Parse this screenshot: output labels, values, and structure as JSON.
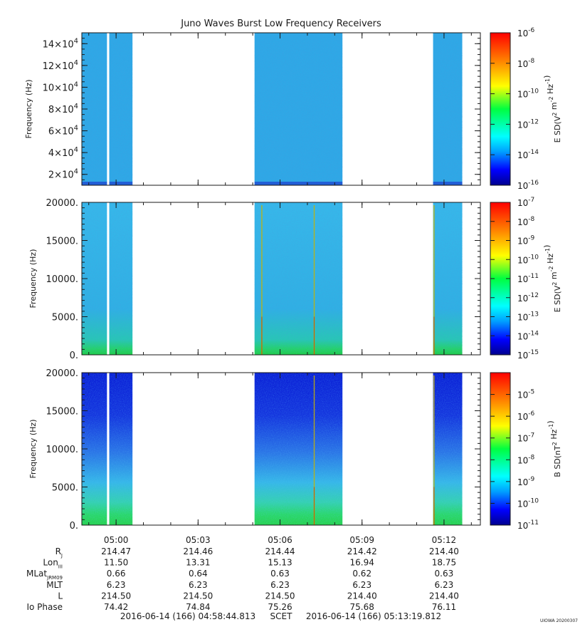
{
  "title": "Juno Waves Burst Low Frequency Receivers",
  "footer": {
    "start": "2016-06-14 (166) 04:58:44.813",
    "scet": "SCET",
    "end": "2016-06-14 (166) 05:13:19.812",
    "credit": "UIOWA 20200307"
  },
  "colors": {
    "data_bg": "#2ea8e6",
    "low_freq_band": "#19c24a",
    "emission_line": "#c8b400",
    "gap": "#ffffff"
  },
  "chart_data": [
    {
      "type": "heatmap",
      "ylabel": "Frequency (Hz)",
      "ylim": [
        10000,
        150000
      ],
      "yticks": [
        "2×10^4",
        "4×10^4",
        "6×10^4",
        "8×10^4",
        "10×10^4",
        "12×10^4",
        "14×10^4"
      ],
      "colorbar_label": "E SD(V^2 m^-2 Hz^-1)",
      "colorbar_scale": "log",
      "colorbar_range": [
        1e-16,
        1e-06
      ],
      "colorbar_ticks": [
        "10^-6",
        "10^-8",
        "10^-10",
        "10^-12",
        "10^-14",
        "10^-16"
      ],
      "data_segments": [
        [
          "04:58:44",
          "04:59:40"
        ],
        [
          "04:59:45",
          "05:00:36"
        ],
        [
          "05:05:04",
          "05:08:17"
        ],
        [
          "05:11:36",
          "05:12:40"
        ]
      ],
      "emission_lines": []
    },
    {
      "type": "heatmap",
      "ylabel": "Frequency (Hz)",
      "ylim": [
        0,
        20000
      ],
      "yticks": [
        "0.",
        "5000.",
        "10000.",
        "15000.",
        "20000."
      ],
      "colorbar_label": "E SD(V^2 m^-2 Hz^-1)",
      "colorbar_scale": "log",
      "colorbar_range": [
        1e-15,
        1e-07
      ],
      "colorbar_ticks": [
        "10^-7",
        "10^-8",
        "10^-9",
        "10^-10",
        "10^-11",
        "10^-12",
        "10^-13",
        "10^-14",
        "10^-15"
      ],
      "data_segments": [
        [
          "04:58:44",
          "04:59:40"
        ],
        [
          "04:59:45",
          "05:00:36"
        ],
        [
          "05:05:04",
          "05:08:17"
        ],
        [
          "05:11:36",
          "05:12:40"
        ]
      ],
      "emission_lines": [
        "05:05:20",
        "05:07:15",
        "05:11:38"
      ]
    },
    {
      "type": "heatmap",
      "ylabel": "Frequency (Hz)",
      "ylim": [
        0,
        20000
      ],
      "yticks": [
        "0.",
        "5000.",
        "10000.",
        "15000.",
        "20000."
      ],
      "colorbar_label": "B SD(nT^2 Hz^-1)",
      "colorbar_scale": "log",
      "colorbar_range": [
        1e-11,
        0.0001
      ],
      "colorbar_ticks": [
        "10^-5",
        "10^-6",
        "10^-7",
        "10^-8",
        "10^-9",
        "10^-10",
        "10^-11"
      ],
      "data_segments": [
        [
          "04:58:44",
          "04:59:40"
        ],
        [
          "04:59:45",
          "05:00:36"
        ],
        [
          "05:05:04",
          "05:08:17"
        ],
        [
          "05:11:36",
          "05:12:40"
        ]
      ],
      "emission_lines": [
        "05:07:15",
        "05:11:38"
      ]
    }
  ],
  "time_axis": {
    "range": [
      "04:58:44.813",
      "05:13:19.812"
    ],
    "ticks": [
      "05:00",
      "05:03",
      "05:06",
      "05:09",
      "05:12"
    ]
  },
  "ephemeris": [
    {
      "label": "R",
      "sub": "J",
      "values": [
        "214.47",
        "214.46",
        "214.44",
        "214.42",
        "214.40"
      ]
    },
    {
      "label": "Lon",
      "sub": "III",
      "values": [
        "11.50",
        "13.31",
        "15.13",
        "16.94",
        "18.75"
      ]
    },
    {
      "label": "MLat",
      "sub": "JRM09",
      "values": [
        "0.66",
        "0.64",
        "0.63",
        "0.62",
        "0.63"
      ]
    },
    {
      "label": "MLT",
      "sub": "",
      "values": [
        "6.23",
        "6.23",
        "6.23",
        "6.23",
        "6.23"
      ]
    },
    {
      "label": "L",
      "sub": "",
      "values": [
        "214.50",
        "214.50",
        "214.50",
        "214.40",
        "214.40"
      ]
    },
    {
      "label": "Io Phase",
      "sub": "",
      "values": [
        "74.42",
        "74.84",
        "75.26",
        "75.68",
        "76.11"
      ]
    }
  ]
}
